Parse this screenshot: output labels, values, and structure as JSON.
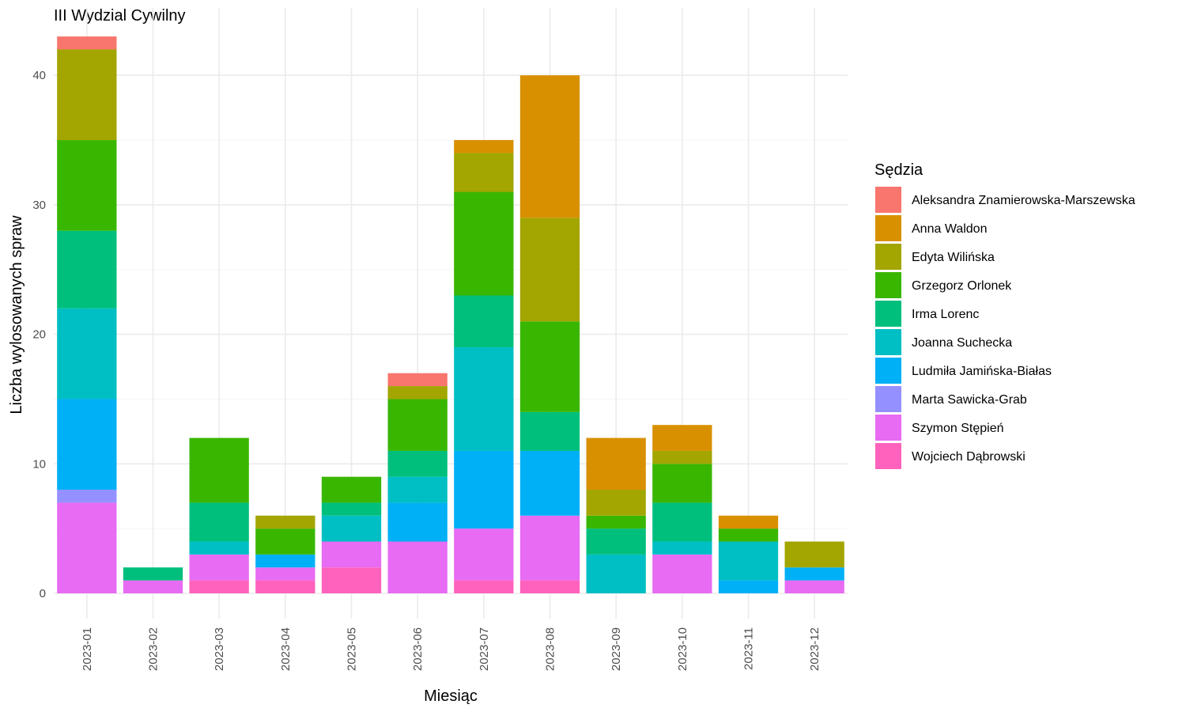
{
  "chart_data": {
    "type": "bar",
    "stacked": true,
    "title": "III Wydzial Cywilny",
    "xlabel": "Miesiąc",
    "ylabel": "Liczba wylosowanych spraw",
    "ylim": [
      0,
      43
    ],
    "yticks": [
      0,
      10,
      20,
      30,
      40
    ],
    "grid": true,
    "legend": {
      "title": "Sędzia",
      "position": "right"
    },
    "categories": [
      "2023-01",
      "2023-02",
      "2023-03",
      "2023-04",
      "2023-05",
      "2023-06",
      "2023-07",
      "2023-08",
      "2023-09",
      "2023-10",
      "2023-11",
      "2023-12"
    ],
    "series": [
      {
        "name": "Aleksandra Znamierowska-Marszewska",
        "color": "#F8766D",
        "values": [
          1,
          0,
          0,
          0,
          0,
          1,
          0,
          0,
          0,
          0,
          0,
          0
        ]
      },
      {
        "name": "Anna Waldon",
        "color": "#D89000",
        "values": [
          0,
          0,
          0,
          0,
          0,
          0,
          1,
          11,
          4,
          2,
          1,
          0
        ]
      },
      {
        "name": "Edyta Wilińska",
        "color": "#A3A500",
        "values": [
          7,
          0,
          0,
          1,
          0,
          1,
          3,
          8,
          2,
          1,
          0,
          2
        ]
      },
      {
        "name": "Grzegorz Orlonek",
        "color": "#39B600",
        "values": [
          7,
          0,
          5,
          2,
          2,
          4,
          8,
          7,
          1,
          3,
          1,
          0
        ]
      },
      {
        "name": "Irma Lorenc",
        "color": "#00BF7D",
        "values": [
          6,
          1,
          3,
          0,
          1,
          2,
          4,
          3,
          2,
          3,
          0,
          0
        ]
      },
      {
        "name": "Joanna Suchecka",
        "color": "#00BFC4",
        "values": [
          7,
          0,
          1,
          0,
          2,
          2,
          8,
          0,
          3,
          1,
          3,
          0
        ]
      },
      {
        "name": "Ludmiła Jamińska-Białas",
        "color": "#00B0F6",
        "values": [
          7,
          0,
          0,
          1,
          0,
          3,
          6,
          5,
          0,
          0,
          1,
          1
        ]
      },
      {
        "name": "Marta Sawicka-Grab",
        "color": "#9590FF",
        "values": [
          1,
          0,
          0,
          0,
          0,
          0,
          0,
          0,
          0,
          0,
          0,
          0
        ]
      },
      {
        "name": "Szymon Stępień",
        "color": "#E76BF3",
        "values": [
          7,
          1,
          2,
          1,
          2,
          4,
          4,
          5,
          0,
          3,
          0,
          1
        ]
      },
      {
        "name": "Wojciech Dąbrowski",
        "color": "#FF62BC",
        "values": [
          0,
          0,
          1,
          1,
          2,
          0,
          1,
          1,
          0,
          0,
          0,
          0
        ]
      }
    ]
  }
}
